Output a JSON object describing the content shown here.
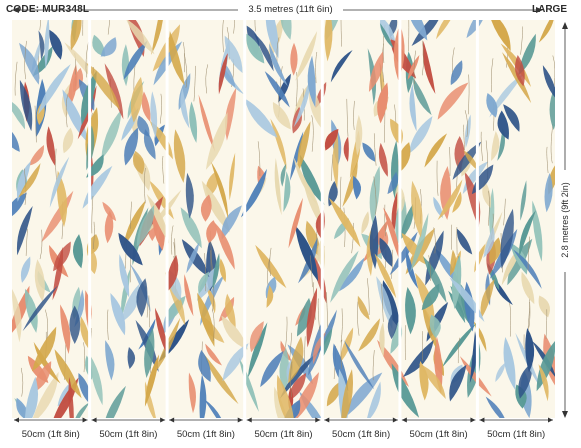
{
  "header": {
    "code": "CODE: MUR348L",
    "width_label": "3.5 metres (11ft 6in)",
    "size": "LARGE"
  },
  "height_label": "2.8 metres (9ft 2in)",
  "panels": [
    {
      "label": "50cm (1ft 8in)"
    },
    {
      "label": "50cm (1ft 8in)"
    },
    {
      "label": "50cm (1ft 8in)"
    },
    {
      "label": "50cm (1ft 8in)"
    },
    {
      "label": "50cm (1ft 8in)"
    },
    {
      "label": "50cm (1ft 8in)"
    },
    {
      "label": "50cm (1ft 8in)"
    }
  ],
  "colors": {
    "background": "#fbf7ea",
    "leaf_palette": [
      "#4e7fb8",
      "#7fa8d0",
      "#a9c8e0",
      "#d4a84b",
      "#e0b865",
      "#e88e70",
      "#c24e42",
      "#5a9a96",
      "#8fc0b8",
      "#2f5488",
      "#e8d9b0"
    ]
  }
}
